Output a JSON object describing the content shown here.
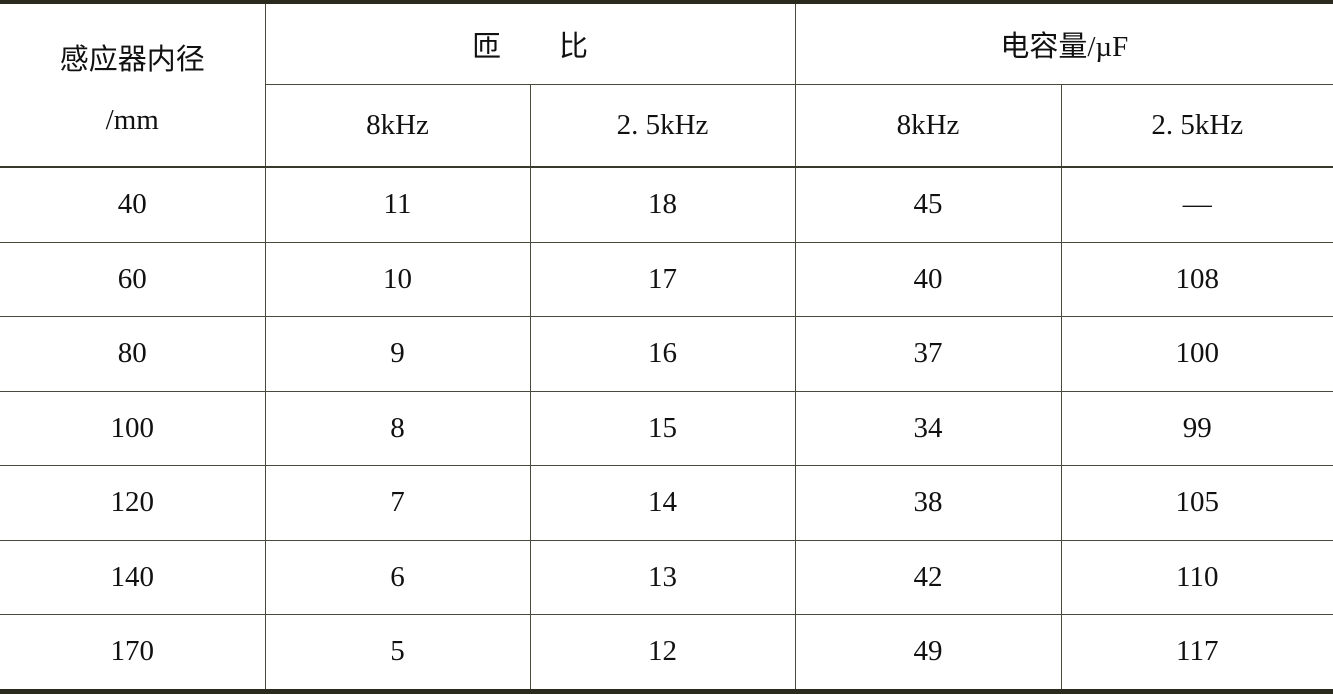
{
  "header": {
    "col1_line1": "感应器内径",
    "col1_line2": "/mm",
    "group1": "匝　　比",
    "group2": "电容量/µF",
    "sub": [
      "8kHz",
      "2. 5kHz",
      "8kHz",
      "2. 5kHz"
    ]
  },
  "rows": [
    [
      "40",
      "11",
      "18",
      "45",
      "—"
    ],
    [
      "60",
      "10",
      "17",
      "40",
      "108"
    ],
    [
      "80",
      "9",
      "16",
      "37",
      "100"
    ],
    [
      "100",
      "8",
      "15",
      "34",
      "99"
    ],
    [
      "120",
      "7",
      "14",
      "38",
      "105"
    ],
    [
      "140",
      "6",
      "13",
      "42",
      "110"
    ],
    [
      "170",
      "5",
      "12",
      "49",
      "117"
    ]
  ]
}
